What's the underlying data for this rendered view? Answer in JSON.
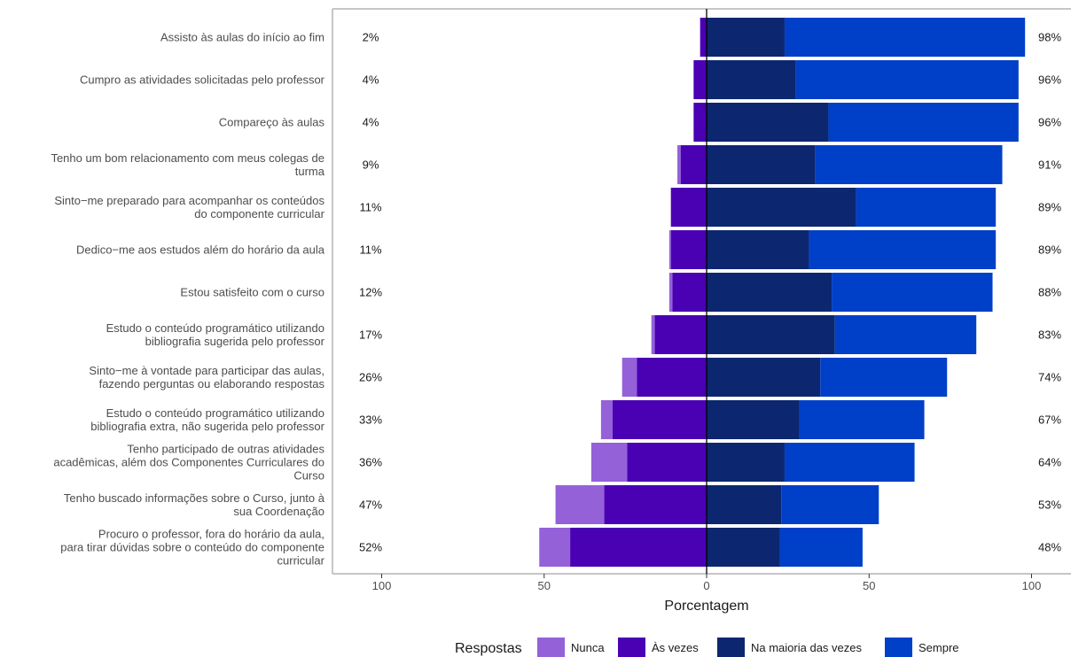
{
  "chart_data": {
    "type": "bar",
    "orientation": "horizontal-diverging",
    "xlabel": "Porcentagem",
    "xlim": [
      -100,
      100
    ],
    "x_ticks": [
      {
        "value": -100,
        "label": "100"
      },
      {
        "value": -50,
        "label": "50"
      },
      {
        "value": 0,
        "label": "0"
      },
      {
        "value": 50,
        "label": "50"
      },
      {
        "value": 100,
        "label": "100"
      }
    ],
    "grid": false,
    "legend": {
      "title": "Respostas",
      "placement": "bottom",
      "items": [
        {
          "label": "Nunca",
          "color": "#9461d9"
        },
        {
          "label": "Às vezes",
          "color": "#4a00b3"
        },
        {
          "label": "Na maioria das vezes",
          "color": "#0c2770"
        },
        {
          "label": "Sempre",
          "color": "#0040c8"
        }
      ]
    },
    "categories": [
      "Assisto às aulas do início ao fim",
      "Cumpro as atividades solicitadas pelo professor",
      "Compareço às aulas",
      "Tenho um bom relacionamento com meus colegas de turma",
      "Sinto−me preparado para acompanhar os conteúdos do componente curricular",
      "Dedico−me aos estudos além do horário da aula",
      "Estou satisfeito com o curso",
      "Estudo o conteúdo programático utilizando bibliografia sugerida pelo professor",
      "Sinto−me à vontade para participar das aulas, fazendo perguntas ou elaborando respostas",
      "Estudo o conteúdo programático utilizando bibliografia extra, não sugerida pelo professor",
      "Tenho participado de outras atividades acadêmicas, além dos Componentes Curriculares do Curso",
      "Tenho buscado informações sobre o Curso, junto à sua Coordenação",
      "Procuro o professor, fora do horário da aula, para tirar dúvidas sobre o conteúdo do componente curricular"
    ],
    "category_lines": [
      [
        "Assisto às aulas do início ao fim"
      ],
      [
        "Cumpro as atividades solicitadas pelo professor"
      ],
      [
        "Compareço às aulas"
      ],
      [
        "Tenho um bom relacionamento com meus colegas de",
        "turma"
      ],
      [
        "Sinto−me preparado para acompanhar os conteúdos",
        "do componente curricular"
      ],
      [
        "Dedico−me aos estudos além do horário da aula"
      ],
      [
        "Estou satisfeito com o curso"
      ],
      [
        "Estudo o conteúdo programático utilizando",
        "bibliografia sugerida pelo professor"
      ],
      [
        "Sinto−me à vontade para participar das aulas,",
        "fazendo perguntas ou elaborando respostas"
      ],
      [
        "Estudo o conteúdo programático utilizando",
        "bibliografia extra, não sugerida pelo professor"
      ],
      [
        "Tenho participado de outras atividades",
        "acadêmicas, além dos Componentes Curriculares do",
        "Curso"
      ],
      [
        "Tenho buscado informações sobre o Curso, junto à",
        "sua Coordenação"
      ],
      [
        "Procuro o professor, fora do horário da aula,",
        "para tirar dúvidas sobre o conteúdo do componente",
        "curricular"
      ]
    ],
    "series": [
      {
        "name": "Nunca",
        "side": "negative",
        "values": [
          0,
          0,
          0,
          1,
          0,
          0.5,
          1,
          1,
          4.5,
          3.5,
          11,
          15,
          9.5
        ]
      },
      {
        "name": "Às vezes",
        "side": "negative",
        "values": [
          2,
          4,
          4,
          8,
          11,
          11,
          10.5,
          16,
          21.5,
          29,
          24.5,
          31.5,
          42
        ]
      },
      {
        "name": "Na maioria das vezes",
        "side": "positive",
        "values": [
          24,
          27.5,
          37.5,
          33.5,
          46,
          31.5,
          38.5,
          39.5,
          35,
          28.5,
          24,
          23,
          22.5
        ]
      },
      {
        "name": "Sempre",
        "side": "positive",
        "values": [
          74,
          68.5,
          58.5,
          57.5,
          43,
          57.5,
          49.5,
          43.5,
          39,
          38.5,
          40,
          30,
          25.5
        ]
      }
    ],
    "left_percent_labels": [
      "2%",
      "4%",
      "4%",
      "9%",
      "11%",
      "11%",
      "12%",
      "17%",
      "26%",
      "33%",
      "36%",
      "47%",
      "52%"
    ],
    "right_percent_labels": [
      "98%",
      "96%",
      "96%",
      "91%",
      "89%",
      "89%",
      "88%",
      "83%",
      "74%",
      "67%",
      "64%",
      "53%",
      "48%"
    ]
  }
}
